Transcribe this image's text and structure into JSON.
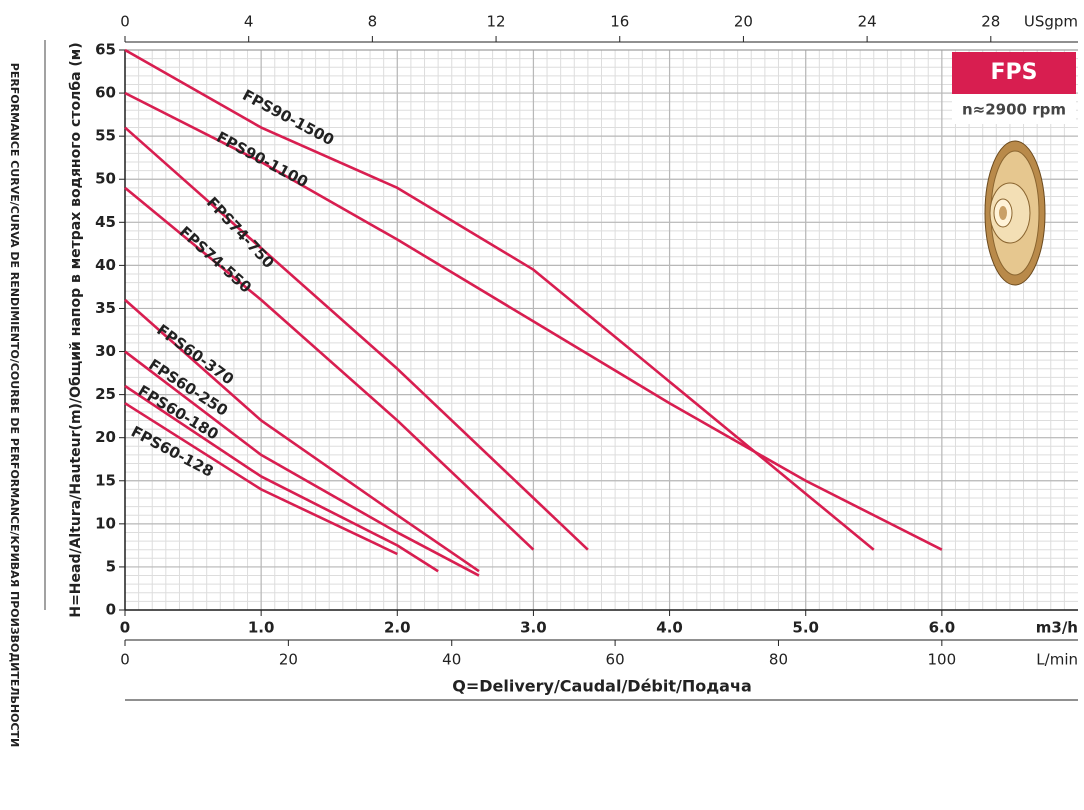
{
  "chart_data": {
    "type": "line",
    "side_title": "PERFORMANCE CURVE/CURVA DE RENDIMIENTO/COURBE DE PERFORMANCE/КРИВАЯ ПРОИЗВОДИТЕЛЬНОСТИ",
    "y_label": "H=Head/Altura/Hauteur(m)/Общий напор в метрах водяного столба (м)",
    "x_label": "Q=Delivery/Caudal/Débit/Подача",
    "x_unit": "m3/h",
    "x2_unit": "USgpm",
    "x3_unit": "L/min",
    "badge": "FPS",
    "speed": "n≈2900 rpm",
    "color": "#d81e50",
    "grid": true,
    "xlim": [
      0,
      7
    ],
    "xticks": [
      0,
      {
        "value": 1,
        "label": "1.0"
      },
      {
        "value": 2,
        "label": "2.0"
      },
      {
        "value": 3,
        "label": "3.0"
      },
      {
        "value": 4,
        "label": "4.0"
      },
      {
        "value": 5,
        "label": "5.0"
      },
      {
        "value": 6,
        "label": "6.0"
      }
    ],
    "x2lim": [
      0,
      30.82
    ],
    "x2ticks": [
      0,
      4,
      8,
      12,
      16,
      20,
      24,
      28
    ],
    "x3lim": [
      0,
      116.67
    ],
    "x3ticks": [
      0,
      20,
      40,
      60,
      80,
      100
    ],
    "ylim": [
      0,
      65
    ],
    "yticks": [
      0,
      5,
      10,
      15,
      20,
      25,
      30,
      35,
      40,
      45,
      50,
      55,
      60,
      65
    ],
    "series": [
      {
        "name": "FPS90-1500",
        "x": [
          0,
          1,
          2,
          3,
          4,
          5,
          5.5
        ],
        "values": [
          65,
          56,
          49,
          39.5,
          26.5,
          13.5,
          7
        ]
      },
      {
        "name": "FPS90-1100",
        "x": [
          0,
          1,
          2,
          3,
          4,
          5,
          6
        ],
        "values": [
          60,
          52,
          43,
          33.5,
          24,
          15,
          7
        ]
      },
      {
        "name": "FPS74-750",
        "x": [
          0,
          1,
          2,
          3,
          3.4
        ],
        "values": [
          56,
          42,
          28,
          13,
          7
        ]
      },
      {
        "name": "FPS74-550",
        "x": [
          0,
          1,
          2,
          3
        ],
        "values": [
          49,
          36,
          22,
          7
        ]
      },
      {
        "name": "FPS60-370",
        "x": [
          0,
          1,
          2,
          2.6
        ],
        "values": [
          36,
          22,
          11,
          4.5
        ]
      },
      {
        "name": "FPS60-250",
        "x": [
          0,
          1,
          2,
          2.6
        ],
        "values": [
          30,
          18,
          9,
          4
        ]
      },
      {
        "name": "FPS60-180",
        "x": [
          0,
          1,
          2,
          2.3
        ],
        "values": [
          26,
          15.5,
          7.5,
          4.5
        ]
      },
      {
        "name": "FPS60-128",
        "x": [
          0,
          1,
          2
        ],
        "values": [
          24,
          14,
          6.5
        ]
      }
    ]
  }
}
